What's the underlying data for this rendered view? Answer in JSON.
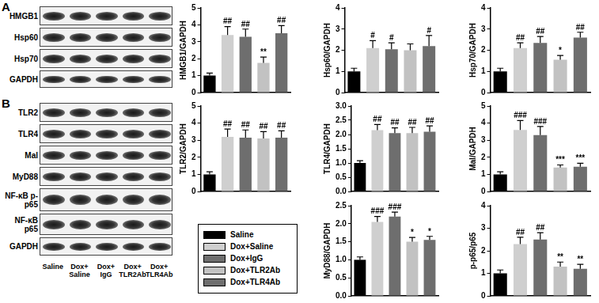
{
  "blot": {
    "panels": [
      {
        "label": "A",
        "rows": [
          "HMGB1",
          "Hsp60",
          "Hsp70",
          "GAPDH"
        ]
      },
      {
        "label": "B",
        "rows": [
          "TLR2",
          "TLR4",
          "Mal",
          "MyD88",
          "NF-κB p-p65",
          "NF-κB p65",
          "GAPDH"
        ]
      }
    ],
    "lanes": [
      "Saline",
      "Dox+ Saline",
      "Dox+ IgG",
      "Dox+ TLR2Ab",
      "Dox+ TLR4Ab"
    ]
  },
  "legend_box": {
    "entries": [
      {
        "name": "Saline",
        "color": "#000000"
      },
      {
        "name": "Dox+Saline",
        "color": "#cfcfcf"
      },
      {
        "name": "Dox+IgG",
        "color": "#6e6e6e"
      },
      {
        "name": "Dox+TLR2Ab",
        "color": "#c2c2c2"
      },
      {
        "name": "Dox+TLR4Ab",
        "color": "#6e6e6e"
      }
    ]
  },
  "chart_data": [
    {
      "type": "bar",
      "y_label": "HMGB1/GAPDH",
      "categories": [
        "Saline",
        "Dox+Saline",
        "Dox+IgG",
        "Dox+TLR2Ab",
        "Dox+TLR4Ab"
      ],
      "values": [
        1.0,
        3.4,
        3.3,
        1.75,
        3.5
      ],
      "errors": [
        0.15,
        0.5,
        0.45,
        0.35,
        0.45
      ],
      "annotations": [
        null,
        "##",
        "##",
        "**",
        "##"
      ],
      "colors": [
        "#000000",
        "#cfcfcf",
        "#6e6e6e",
        "#c2c2c2",
        "#6e6e6e"
      ],
      "ylim": [
        0,
        5
      ],
      "yticks": [
        0,
        1,
        2,
        3,
        4,
        5
      ],
      "grid": false,
      "tick_labels": "y"
    },
    {
      "type": "bar",
      "y_label": "Hsp60/GAPDH",
      "categories": [
        "Saline",
        "Dox+Saline",
        "Dox+IgG",
        "Dox+TLR2Ab",
        "Dox+TLR4Ab"
      ],
      "values": [
        1.0,
        2.1,
        2.05,
        2.0,
        2.2
      ],
      "errors": [
        0.15,
        0.35,
        0.3,
        0.3,
        0.5
      ],
      "annotations": [
        null,
        "#",
        "#",
        null,
        "#"
      ],
      "colors": [
        "#000000",
        "#cfcfcf",
        "#6e6e6e",
        "#c2c2c2",
        "#6e6e6e"
      ],
      "ylim": [
        0,
        4
      ],
      "yticks": [
        0,
        1,
        2,
        3,
        4
      ],
      "grid": false,
      "tick_labels": "y"
    },
    {
      "type": "bar",
      "y_label": "Hsp70/GAPDH",
      "categories": [
        "Saline",
        "Dox+Saline",
        "Dox+IgG",
        "Dox+TLR2Ab",
        "Dox+TLR4Ab"
      ],
      "values": [
        1.0,
        2.1,
        2.35,
        1.55,
        2.6
      ],
      "errors": [
        0.15,
        0.25,
        0.3,
        0.2,
        0.25
      ],
      "annotations": [
        null,
        "##",
        "##",
        "*",
        "##"
      ],
      "colors": [
        "#000000",
        "#cfcfcf",
        "#6e6e6e",
        "#c2c2c2",
        "#6e6e6e"
      ],
      "ylim": [
        0,
        4
      ],
      "yticks": [
        0,
        1,
        2,
        3,
        4
      ],
      "grid": false,
      "tick_labels": "y"
    },
    {
      "type": "bar",
      "y_label": "TLR2/GAPDH",
      "categories": [
        "Saline",
        "Dox+Saline",
        "Dox+IgG",
        "Dox+TLR2Ab",
        "Dox+TLR4Ab"
      ],
      "values": [
        1.0,
        3.2,
        3.15,
        3.1,
        3.15
      ],
      "errors": [
        0.15,
        0.45,
        0.45,
        0.4,
        0.4
      ],
      "annotations": [
        null,
        "##",
        "##",
        "##",
        "##"
      ],
      "colors": [
        "#000000",
        "#cfcfcf",
        "#6e6e6e",
        "#c2c2c2",
        "#6e6e6e"
      ],
      "ylim": [
        0,
        5
      ],
      "yticks": [
        0,
        1,
        2,
        3,
        4,
        5
      ],
      "grid": false,
      "tick_labels": "y"
    },
    {
      "type": "bar",
      "y_label": "TLR4/GAPDH",
      "categories": [
        "Saline",
        "Dox+Saline",
        "Dox+IgG",
        "Dox+TLR2Ab",
        "Dox+TLR4Ab"
      ],
      "values": [
        1.0,
        2.15,
        2.05,
        2.05,
        2.1
      ],
      "errors": [
        0.08,
        0.2,
        0.18,
        0.2,
        0.2
      ],
      "annotations": [
        null,
        "##",
        "##",
        "##",
        "##"
      ],
      "colors": [
        "#000000",
        "#cfcfcf",
        "#6e6e6e",
        "#c2c2c2",
        "#6e6e6e"
      ],
      "ylim": [
        0,
        3
      ],
      "yticks": [
        {
          "value": 0,
          "label": "0.0"
        },
        0.5,
        {
          "value": 1,
          "label": "1.0"
        },
        1.5,
        {
          "value": 2,
          "label": "2.0"
        },
        2.5,
        {
          "value": 3,
          "label": "3.0"
        }
      ],
      "grid": false,
      "tick_labels": "y"
    },
    {
      "type": "bar",
      "y_label": "Mal/GAPDH",
      "categories": [
        "Saline",
        "Dox+Saline",
        "Dox+IgG",
        "Dox+TLR2Ab",
        "Dox+TLR4Ab"
      ],
      "values": [
        1.0,
        3.6,
        3.3,
        1.4,
        1.45
      ],
      "errors": [
        0.15,
        0.55,
        0.5,
        0.15,
        0.2
      ],
      "annotations": [
        null,
        "###",
        "###",
        "***",
        "***"
      ],
      "colors": [
        "#000000",
        "#cfcfcf",
        "#6e6e6e",
        "#c2c2c2",
        "#6e6e6e"
      ],
      "ylim": [
        0,
        5
      ],
      "yticks": [
        0,
        1,
        2,
        3,
        4,
        5
      ],
      "grid": false,
      "tick_labels": "y"
    },
    {
      "type": "bar",
      "y_label": "MyD88/GAPDH",
      "categories": [
        "Saline",
        "Dox+Saline",
        "Dox+IgG",
        "Dox+TLR2Ab",
        "Dox+TLR4Ab"
      ],
      "values": [
        1.0,
        2.05,
        2.2,
        1.5,
        1.55
      ],
      "errors": [
        0.08,
        0.15,
        0.12,
        0.12,
        0.1
      ],
      "annotations": [
        null,
        "###",
        "###",
        "*",
        "*"
      ],
      "colors": [
        "#000000",
        "#cfcfcf",
        "#6e6e6e",
        "#c2c2c2",
        "#6e6e6e"
      ],
      "ylim": [
        0,
        2.5
      ],
      "yticks": [
        {
          "value": 0,
          "label": "0.0"
        },
        0.5,
        {
          "value": 1,
          "label": "1.0"
        },
        1.5,
        {
          "value": 2,
          "label": "2.0"
        },
        2.5
      ],
      "grid": false,
      "tick_labels": "y"
    },
    {
      "type": "bar",
      "y_label": "p-p65/p65",
      "categories": [
        "Saline",
        "Dox+Saline",
        "Dox+IgG",
        "Dox+TLR2Ab",
        "Dox+TLR4Ab"
      ],
      "values": [
        1.0,
        2.3,
        2.5,
        1.3,
        1.2
      ],
      "errors": [
        0.15,
        0.3,
        0.3,
        0.2,
        0.2
      ],
      "annotations": [
        null,
        "##",
        "##",
        "**",
        "**"
      ],
      "colors": [
        "#000000",
        "#cfcfcf",
        "#6e6e6e",
        "#c2c2c2",
        "#6e6e6e"
      ],
      "ylim": [
        0,
        4
      ],
      "yticks": [
        0,
        1,
        2,
        3,
        4
      ],
      "grid": false,
      "tick_labels": "y"
    }
  ]
}
